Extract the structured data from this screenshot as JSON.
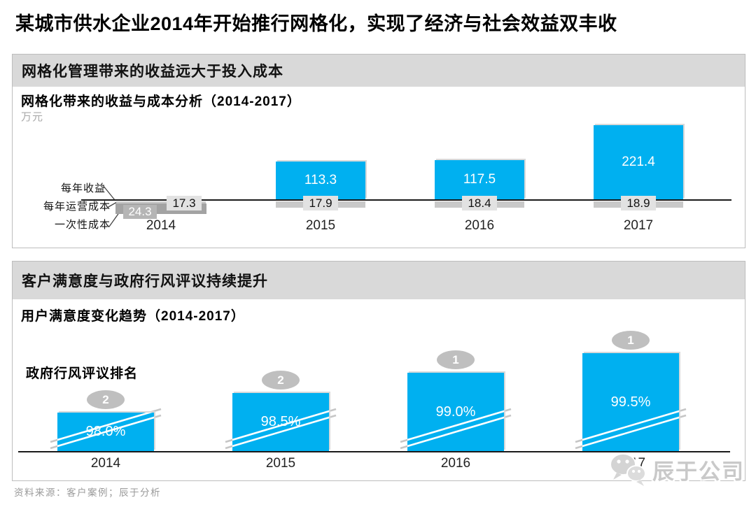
{
  "page": {
    "title": "某城市供水企业2014年开始推行网格化，实现了经济与社会效益双丰收"
  },
  "panels": [
    {
      "header": "网格化管理带来的收益远大于投入成本",
      "chart_title": "网格化带来的收益与成本分析（2014-2017）",
      "unit": "万元",
      "legend_labels": [
        "每年收益",
        "每年运营成本",
        "一次性成本"
      ]
    },
    {
      "header": "客户满意度与政府行风评议持续提升",
      "chart_title": "用户满意度变化趋势（2014-2017）",
      "ranking_label": "政府行风评议排名"
    }
  ],
  "footer": {
    "source_text": "资料来源：客户案例；辰于分析"
  },
  "watermark": {
    "company_name": "辰于公司",
    "icon": "wechat-bubbles-icon"
  },
  "colors": {
    "accent_blue": "#00b0f0",
    "header_gray": "#d9d9d9",
    "cost_bar_light_gray": "#c9c9c9",
    "cost_label_box_gray": "#e2e2e2",
    "one_time_bar_dark_gray": "#a3a3a3",
    "rank_oval_gray": "#bfbfbf"
  },
  "chart_data": [
    {
      "type": "bar",
      "title": "网格化带来的收益与成本分析（2014-2017）",
      "ylabel": "万元",
      "categories": [
        "2014",
        "2015",
        "2016",
        "2017"
      ],
      "series": [
        {
          "name": "每年收益",
          "role": "above_baseline",
          "color": "accent_blue",
          "values": [
            0,
            113.3,
            117.5,
            221.4
          ]
        },
        {
          "name": "每年运营成本",
          "role": "below_baseline",
          "color": "cost_bar_light_gray",
          "values": [
            17.3,
            17.9,
            18.4,
            18.9
          ]
        },
        {
          "name": "一次性成本",
          "role": "below_baseline",
          "color": "one_time_bar_dark_gray",
          "values": [
            24.3,
            null,
            null,
            null
          ]
        }
      ],
      "legend_position": "left, with connector lines pointing at 2014 bars",
      "grid": false
    },
    {
      "type": "bar",
      "title": "用户满意度变化趋势（2014-2017）",
      "categories": [
        "2014",
        "2015",
        "2016",
        "2017"
      ],
      "series": [
        {
          "name": "用户满意度",
          "unit": "%",
          "values": [
            98.0,
            98.5,
            99.0,
            99.5
          ],
          "labels": [
            "98.0%",
            "98.5%",
            "99.0%",
            "99.5%"
          ]
        }
      ],
      "annotations": [
        {
          "name": "政府行风评议排名",
          "style": "gray-oval-above-bar",
          "values": [
            2,
            2,
            1,
            1
          ]
        }
      ],
      "axis_break": true,
      "grid": false
    }
  ]
}
